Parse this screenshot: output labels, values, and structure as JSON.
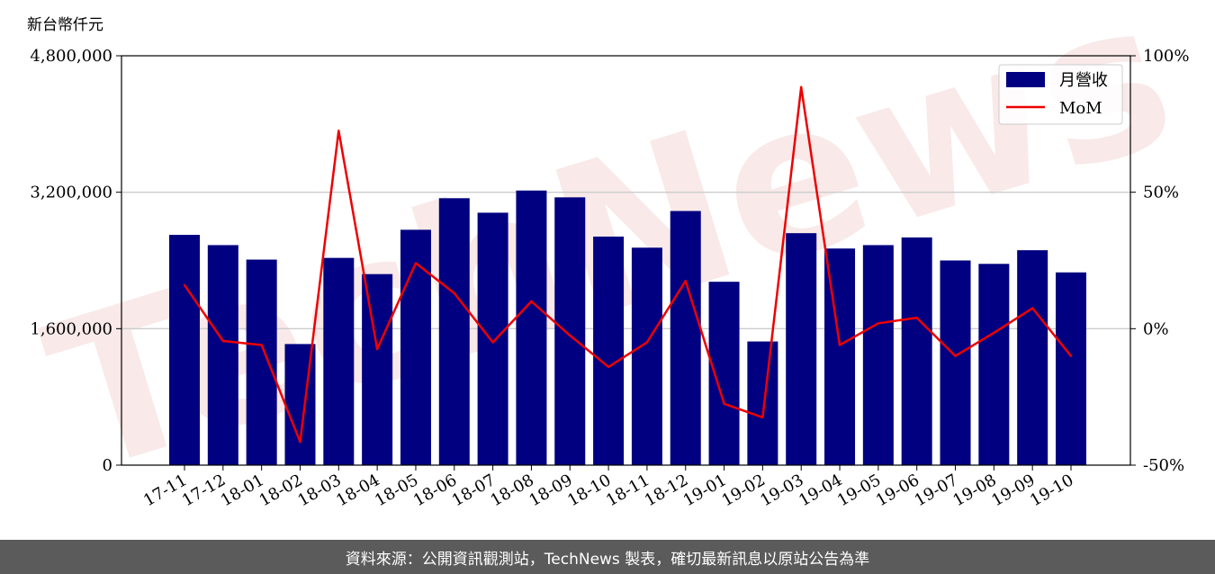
{
  "chart_data": {
    "type": "bar",
    "categories": [
      "17-11",
      "17-12",
      "18-01",
      "18-02",
      "18-03",
      "18-04",
      "18-05",
      "18-06",
      "18-07",
      "18-08",
      "18-09",
      "18-10",
      "18-11",
      "18-12",
      "19-01",
      "19-02",
      "19-03",
      "19-04",
      "19-05",
      "19-06",
      "19-07",
      "19-08",
      "19-09",
      "19-10"
    ],
    "unit_label": "新台幣仟元",
    "y_left": {
      "ylim": [
        0,
        4800000
      ],
      "ticks": [
        0,
        1600000,
        3200000,
        4800000
      ],
      "tick_labels": [
        "0",
        "1,600,000",
        "3,200,000",
        "4,800,000"
      ]
    },
    "y_right": {
      "ylim": [
        -50,
        100
      ],
      "ticks": [
        -50,
        0,
        50,
        100
      ],
      "tick_labels": [
        "-50%",
        "0%",
        "50%",
        "100%"
      ]
    },
    "grid": "horizontal",
    "legend_position": "top-right",
    "series": [
      {
        "name": "月營收",
        "type": "bar",
        "axis": "left",
        "color": "#000080",
        "values": [
          2700000,
          2580000,
          2410000,
          1420000,
          2430000,
          2240000,
          2760000,
          3130000,
          2960000,
          3220000,
          3140000,
          2680000,
          2550000,
          2980000,
          2150000,
          1450000,
          2720000,
          2540000,
          2580000,
          2670000,
          2400000,
          2360000,
          2520000,
          2260000
        ]
      },
      {
        "name": "MoM",
        "type": "line",
        "axis": "right",
        "color": "#ee0000",
        "values": [
          16,
          -4.5,
          -6,
          -41.5,
          72.5,
          -7.5,
          24,
          13,
          -5,
          10,
          -2.5,
          -14,
          -5,
          17.5,
          -27.5,
          -32.5,
          88.5,
          -6,
          2,
          4,
          -10,
          -1.5,
          7.5,
          -10
        ]
      }
    ]
  },
  "watermark": "TechNews",
  "footer": {
    "text": "資料來源：公開資訊觀測站，TechNews 製表，確切最新訊息以原站公告為準"
  }
}
